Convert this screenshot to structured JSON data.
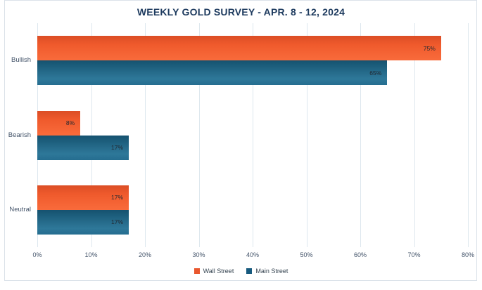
{
  "chart_data": {
    "type": "bar",
    "orientation": "horizontal",
    "title": "WEEKLY GOLD SURVEY - APR. 8 - 12, 2024",
    "categories": [
      "Bullish",
      "Bearish",
      "Neutral"
    ],
    "series": [
      {
        "name": "Wall Street",
        "color": "#E9572E",
        "values": [
          75,
          8,
          17
        ],
        "data_labels": [
          "75%",
          "8%",
          "17%"
        ]
      },
      {
        "name": "Main Street",
        "color": "#175A7E",
        "values": [
          65,
          17,
          17
        ],
        "data_labels": [
          "65%",
          "17%",
          "17%"
        ]
      }
    ],
    "x_ticks": [
      "0%",
      "10%",
      "20%",
      "30%",
      "40%",
      "50%",
      "60%",
      "70%",
      "80%"
    ],
    "xlim": [
      0,
      80
    ],
    "grid": true,
    "legend_position": "bottom"
  },
  "colors": {
    "wall_street": "#E9572E",
    "main_street": "#175A7E",
    "gridline": "#DDE7EE",
    "title_text": "#1D3A5E",
    "axis_text": "#44546A"
  }
}
